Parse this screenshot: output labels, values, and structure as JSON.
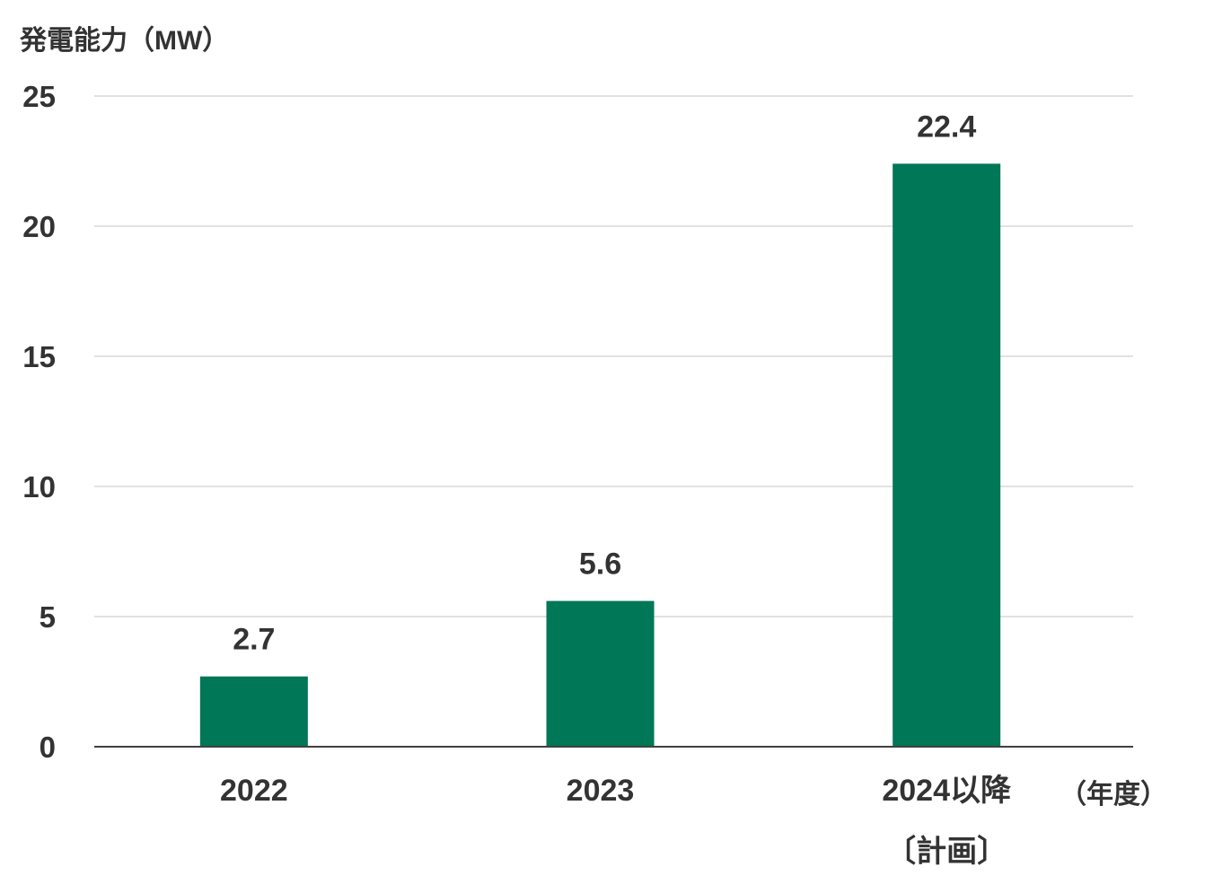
{
  "chart_data": {
    "type": "bar",
    "ylabel": "発電能力（MW）",
    "x_unit_label": "（年度）",
    "categories": [
      "2022",
      "2023",
      "2024以降"
    ],
    "category_sublabels": [
      "",
      "",
      "〔計画〕"
    ],
    "values": [
      2.7,
      5.6,
      22.4
    ],
    "data_labels": [
      "2.7",
      "5.6",
      "22.4"
    ],
    "ylim": [
      0,
      25
    ],
    "yticks": [
      0,
      5,
      10,
      15,
      20,
      25
    ],
    "grid": true,
    "legend": "none",
    "colors": {
      "bar": "#007756",
      "grid": "#d9d9d9",
      "axis": "#404040",
      "text": "#333333"
    }
  }
}
